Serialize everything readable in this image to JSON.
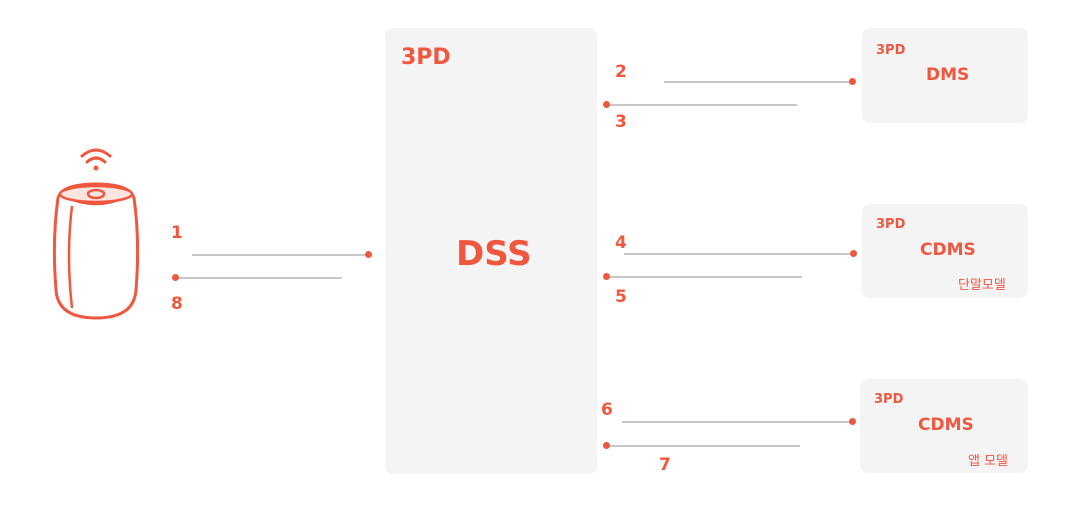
{
  "colors": {
    "accent": "#f0573f",
    "box": "#f4f4f4",
    "line": "#c8c8c8"
  },
  "icons": [
    "wifi-icon",
    "smart-speaker-icon"
  ],
  "dss": {
    "tag": "3PD",
    "title": "DSS"
  },
  "targets": [
    {
      "tag": "3PD",
      "title": "DMS",
      "subtitle": ""
    },
    {
      "tag": "3PD",
      "title": "CDMS",
      "subtitle": "단말모델"
    },
    {
      "tag": "3PD",
      "title": "CDMS",
      "subtitle": "앱 모델"
    }
  ],
  "steps": [
    "1",
    "2",
    "3",
    "4",
    "5",
    "6",
    "7",
    "8"
  ]
}
